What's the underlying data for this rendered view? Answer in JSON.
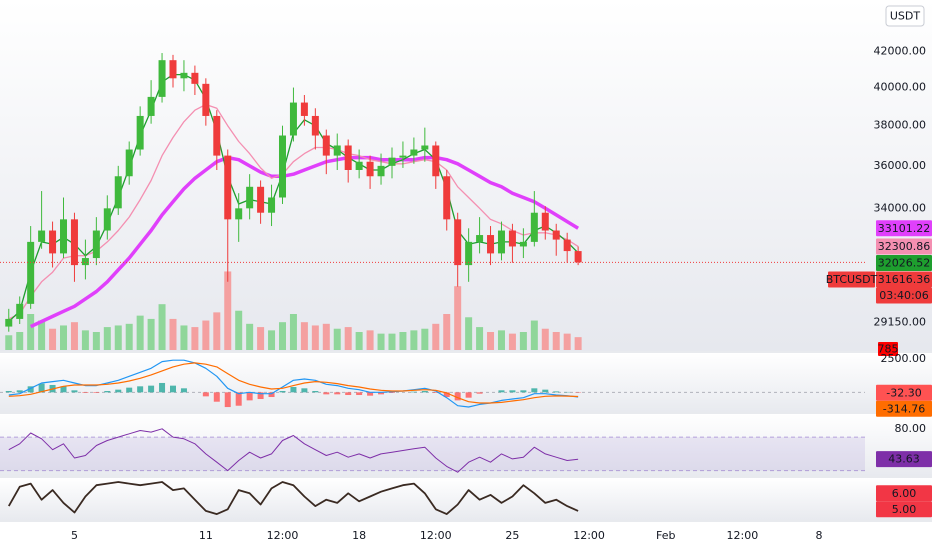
{
  "chart_data": [
    {
      "type": "candlestick",
      "currency": "USDT",
      "symbol": "BTCUSDT",
      "countdown": "03:40:06",
      "x": [
        2,
        2.5,
        3,
        3.5,
        4,
        4.5,
        5,
        5.5,
        6,
        6.5,
        7,
        7.5,
        8,
        8.5,
        9,
        9.5,
        10,
        10.5,
        11,
        11.5,
        12,
        12.5,
        13,
        13.5,
        14,
        14.5,
        15,
        15.5,
        16,
        16.5,
        17,
        17.5,
        18,
        18.5,
        19,
        19.5,
        20,
        20.5,
        21,
        21.5,
        22,
        22.5,
        23,
        23.5,
        24,
        24.5,
        25,
        25.5,
        26,
        26.5,
        27,
        27.5,
        28
      ],
      "open": [
        29000,
        29300,
        29900,
        32500,
        33000,
        32000,
        33500,
        31500,
        31800,
        33000,
        34000,
        35500,
        36800,
        38500,
        39500,
        41500,
        40500,
        40800,
        40200,
        38500,
        36500,
        33500,
        34000,
        35000,
        33800,
        34500,
        37500,
        39200,
        38500,
        37500,
        36500,
        37000,
        35800,
        36200,
        35500,
        36000,
        36400,
        36500,
        36800,
        37000,
        35500,
        33500,
        31500,
        32500,
        32800,
        32000,
        33000,
        32300,
        32500,
        33800,
        33000,
        32600,
        32100
      ],
      "high": [
        29700,
        30200,
        33200,
        34800,
        33400,
        34500,
        33800,
        32600,
        33600,
        34600,
        36000,
        37200,
        39000,
        40400,
        41900,
        41800,
        41500,
        41200,
        40500,
        38800,
        36800,
        34700,
        35600,
        35300,
        35100,
        38000,
        40000,
        39600,
        38900,
        37800,
        37600,
        37300,
        36800,
        36500,
        36600,
        36900,
        37200,
        37400,
        37900,
        37200,
        35800,
        33800,
        33100,
        33600,
        33200,
        33400,
        33300,
        33100,
        34800,
        34100,
        33300,
        32900,
        32300
      ],
      "low": [
        28800,
        29100,
        29700,
        32200,
        31400,
        31800,
        30800,
        30900,
        31500,
        32600,
        33700,
        35100,
        36500,
        38100,
        39200,
        40000,
        39800,
        39600,
        38000,
        35800,
        30800,
        32500,
        33500,
        33300,
        33200,
        34200,
        37200,
        38000,
        36800,
        35600,
        35800,
        35200,
        35400,
        34900,
        35100,
        35400,
        35900,
        36100,
        36200,
        34900,
        33000,
        30600,
        30800,
        32000,
        31500,
        31700,
        31600,
        31800,
        32300,
        32600,
        31900,
        31600,
        31500
      ],
      "close": [
        29300,
        29900,
        32500,
        33000,
        32000,
        33500,
        31500,
        31800,
        33000,
        34000,
        35500,
        36800,
        38500,
        39500,
        41500,
        40500,
        40800,
        40200,
        38500,
        36500,
        33500,
        34000,
        35000,
        33800,
        34500,
        37500,
        39200,
        38500,
        37500,
        36500,
        37000,
        35800,
        36200,
        35500,
        36000,
        36400,
        36500,
        36800,
        37000,
        35500,
        33500,
        31500,
        32500,
        32800,
        32000,
        33000,
        32300,
        32500,
        33800,
        33000,
        32600,
        32100,
        31616.36
      ],
      "up_color": "#3fb93c",
      "down_color": "#ef3b3b",
      "series": [
        {
          "color": "#e040fb",
          "values": [
            null,
            null,
            29000,
            29200,
            29400,
            29600,
            29800,
            30100,
            30400,
            30800,
            31300,
            31800,
            32400,
            33000,
            33700,
            34300,
            34900,
            35400,
            35800,
            36200,
            36400,
            36300,
            36000,
            35700,
            35500,
            35500,
            35600,
            35800,
            36000,
            36200,
            36300,
            36400,
            36400,
            36400,
            36300,
            36300,
            36300,
            36300,
            36400,
            36400,
            36300,
            36100,
            35800,
            35500,
            35200,
            35000,
            34700,
            34500,
            34300,
            34000,
            33700,
            33400,
            33101.22
          ]
        },
        {
          "color": "#f48fb1",
          "values": [
            29300,
            29500,
            30200,
            30800,
            31200,
            31800,
            31900,
            31900,
            32100,
            32500,
            33000,
            33600,
            34400,
            35300,
            36500,
            37400,
            38200,
            38800,
            39100,
            38900,
            38000,
            37200,
            36600,
            35900,
            35400,
            35600,
            36200,
            36600,
            36900,
            36900,
            36800,
            36600,
            36500,
            36300,
            36200,
            36100,
            36100,
            36200,
            36300,
            36200,
            35800,
            35000,
            34500,
            34000,
            33500,
            33300,
            33000,
            32800,
            32900,
            32900,
            32800,
            32600,
            32300.86
          ]
        },
        {
          "color": "#1e9e2e",
          "values": [
            29200,
            29600,
            31200,
            32500,
            32400,
            32700,
            32400,
            31900,
            32300,
            33300,
            34500,
            35900,
            37500,
            38800,
            40300,
            40700,
            40700,
            40400,
            39400,
            37700,
            35500,
            34200,
            34400,
            34300,
            34200,
            35600,
            37600,
            38300,
            38000,
            37100,
            36800,
            36400,
            36100,
            35800,
            35800,
            36100,
            36300,
            36600,
            36800,
            36300,
            34900,
            33000,
            32400,
            32500,
            32400,
            32500,
            32500,
            32400,
            33000,
            33200,
            32900,
            32500,
            32026.52
          ]
        }
      ],
      "volume": {
        "values": [
          900,
          1100,
          2200,
          1800,
          1300,
          1500,
          1700,
          1200,
          1100,
          1400,
          1500,
          1600,
          2100,
          1900,
          2800,
          1900,
          1500,
          1400,
          1800,
          2300,
          4800,
          2400,
          1600,
          1400,
          1200,
          1700,
          2200,
          1700,
          1500,
          1600,
          1300,
          1400,
          1100,
          1200,
          1000,
          1000,
          1100,
          1200,
          1300,
          1600,
          2200,
          3900,
          2000,
          1400,
          1100,
          1200,
          1000,
          1100,
          1800,
          1300,
          1100,
          1000,
          785
        ],
        "vlim": [
          0,
          5500
        ],
        "up_color": "#8fd69a",
        "down_color": "#f4a0a0",
        "tag_color": "#ff0000"
      },
      "xlim": [
        1.6,
        41.1
      ],
      "xticks": [
        5,
        11,
        {
          "value": 14.5,
          "label": "12:00"
        },
        18,
        {
          "value": 21.5,
          "label": "12:00"
        },
        25,
        {
          "value": 28.5,
          "label": "12:00"
        },
        {
          "value": 32,
          "label": "Feb"
        },
        {
          "value": 35.5,
          "label": "12:00"
        },
        {
          "value": 39,
          "label": "8"
        }
      ],
      "ylim": [
        28100,
        45000
      ],
      "log_scale": true,
      "yticks": [
        {
          "value": 42000,
          "label": "42000.00"
        },
        {
          "value": 40000,
          "label": "40000.00"
        },
        {
          "value": 38000,
          "label": "38000.00"
        },
        {
          "value": 36000,
          "label": "36000.00"
        },
        {
          "value": 34000,
          "label": "34000.00"
        },
        {
          "value": 29150,
          "label": "29150.00"
        }
      ]
    },
    {
      "type": "macd",
      "series": [
        {
          "color": "#2196f3",
          "values": [
            -200,
            -100,
            300,
            700,
            800,
            900,
            700,
            500,
            500,
            700,
            900,
            1200,
            1500,
            1800,
            2300,
            2400,
            2400,
            2200,
            1800,
            1200,
            300,
            -100,
            0,
            -100,
            -100,
            400,
            900,
            1000,
            900,
            600,
            500,
            300,
            200,
            0,
            0,
            50,
            100,
            200,
            300,
            100,
            -400,
            -1000,
            -1100,
            -900,
            -800,
            -600,
            -500,
            -400,
            -100,
            -100,
            -200,
            -250,
            -347.06
          ]
        },
        {
          "color": "#ff6d00",
          "values": [
            -300,
            -250,
            -150,
            50,
            250,
            450,
            550,
            550,
            550,
            600,
            700,
            850,
            1050,
            1300,
            1600,
            1900,
            2100,
            2200,
            2100,
            1900,
            1400,
            900,
            600,
            400,
            250,
            300,
            500,
            700,
            800,
            750,
            650,
            500,
            400,
            250,
            150,
            100,
            100,
            150,
            200,
            150,
            -50,
            -400,
            -700,
            -800,
            -800,
            -750,
            -650,
            -550,
            -400,
            -300,
            -270,
            -280,
            -314.76
          ]
        }
      ],
      "histogram": {
        "values": [
          100,
          150,
          450,
          650,
          550,
          450,
          150,
          -50,
          -50,
          100,
          200,
          350,
          450,
          500,
          700,
          500,
          300,
          0,
          -300,
          -700,
          -1100,
          -1000,
          -600,
          -500,
          -350,
          100,
          400,
          300,
          100,
          -150,
          -150,
          -200,
          -200,
          -250,
          -150,
          -50,
          0,
          50,
          100,
          -50,
          -350,
          -600,
          -400,
          -100,
          0,
          150,
          150,
          150,
          300,
          200,
          70,
          30,
          -32.3
        ],
        "value_labels": [
          null,
          null,
          null,
          null,
          null,
          null,
          null,
          null,
          null,
          null,
          null,
          null,
          null,
          null,
          null,
          null,
          null,
          null,
          null,
          null,
          null,
          null,
          null,
          null,
          null,
          null,
          null,
          null,
          null,
          null,
          null,
          null,
          null,
          null,
          null,
          null,
          null,
          null,
          null,
          null,
          null,
          null,
          null,
          null,
          null,
          null,
          null,
          null,
          null,
          null,
          null,
          null,
          "-32.30"
        ],
        "up_color": "#26a69a",
        "down_color": "#ff5252"
      },
      "ylim": [
        -1470,
        2940
      ],
      "yticks": [
        {
          "value": 2500,
          "label": "2500.00"
        }
      ]
    },
    {
      "type": "line",
      "band": [
        30,
        70
      ],
      "band_color": "#7e57c2",
      "series": [
        {
          "color": "#7e2fa8",
          "values": [
            55,
            62,
            75,
            68,
            55,
            62,
            45,
            48,
            60,
            66,
            70,
            74,
            78,
            76,
            80,
            70,
            68,
            62,
            50,
            40,
            30,
            42,
            52,
            45,
            50,
            66,
            72,
            62,
            55,
            48,
            52,
            46,
            50,
            45,
            50,
            52,
            54,
            56,
            58,
            45,
            35,
            28,
            40,
            46,
            40,
            50,
            44,
            46,
            58,
            50,
            46,
            42,
            43.63
          ]
        }
      ],
      "ylim": [
        23.5,
        96.5
      ],
      "yticks": [
        {
          "value": 80,
          "label": "80.00"
        }
      ]
    },
    {
      "type": "line",
      "series": [
        {
          "color": "#3a2a22",
          "values": [
            5.2,
            6.4,
            6.6,
            5.6,
            6.2,
            5.4,
            4.8,
            5.8,
            6.5,
            6.6,
            6.7,
            6.6,
            6.5,
            6.6,
            6.7,
            6.2,
            6.3,
            5.6,
            4.9,
            4.7,
            5.0,
            6.2,
            6.0,
            5.3,
            6.3,
            6.7,
            6.5,
            5.8,
            5.2,
            5.6,
            5.4,
            6.0,
            5.5,
            5.8,
            6.1,
            6.3,
            6.5,
            6.6,
            6.0,
            5.0,
            4.7,
            5.3,
            6.2,
            5.6,
            5.9,
            5.4,
            5.8,
            6.5,
            6.0,
            5.4,
            5.6,
            5.2,
            4.9
          ]
        }
      ],
      "ylim": [
        4.33,
        6.89
      ],
      "yticks": [
        {
          "value": 6,
          "label": "6.00"
        },
        {
          "value": 5,
          "label": "5.00"
        }
      ]
    }
  ]
}
